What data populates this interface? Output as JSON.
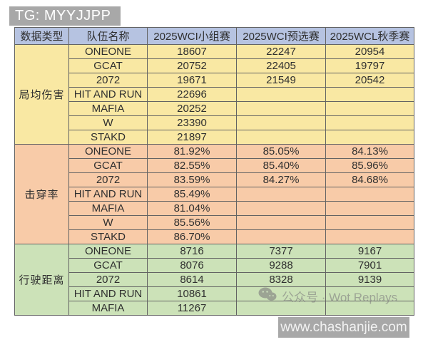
{
  "badges": {
    "tg": "TG: MYYJJPP",
    "website": "www.chashanjie.com"
  },
  "watermark": {
    "icon": "wechat-icon",
    "text": "公众号 · Wot Replays"
  },
  "colors": {
    "header_bg": "#b6c3e1",
    "yellow": "#f9e8a3",
    "salmon": "#f8cba8",
    "green": "#cce2b8",
    "border": "#636363",
    "text": "#2f2f2f",
    "badge_bg": "#a8a8a8"
  },
  "chart_data": {
    "type": "table",
    "columns": [
      "数据类型",
      "队伍名称",
      "2025WCI小组赛",
      "2025WCI预选赛",
      "2025WCL秋季赛"
    ],
    "sections": [
      {
        "label": "局均伤害",
        "color_key": "yellow",
        "rows": [
          {
            "team": "ONEONE",
            "values": [
              "18607",
              "22247",
              "20954"
            ]
          },
          {
            "team": "GCAT",
            "values": [
              "20752",
              "22405",
              "19797"
            ]
          },
          {
            "team": "2072",
            "values": [
              "19671",
              "21549",
              "20542"
            ]
          },
          {
            "team": "HIT AND RUN",
            "values": [
              "22696",
              "",
              ""
            ]
          },
          {
            "team": "MAFIA",
            "values": [
              "20252",
              "",
              ""
            ]
          },
          {
            "team": "W",
            "values": [
              "23390",
              "",
              ""
            ]
          },
          {
            "team": "STAKD",
            "values": [
              "21897",
              "",
              ""
            ]
          }
        ]
      },
      {
        "label": "击穿率",
        "color_key": "salmon",
        "rows": [
          {
            "team": "ONEONE",
            "values": [
              "81.92%",
              "85.05%",
              "84.13%"
            ]
          },
          {
            "team": "GCAT",
            "values": [
              "82.55%",
              "85.40%",
              "85.96%"
            ]
          },
          {
            "team": "2072",
            "values": [
              "83.59%",
              "84.27%",
              "84.68%"
            ]
          },
          {
            "team": "HIT AND RUN",
            "values": [
              "85.49%",
              "",
              ""
            ]
          },
          {
            "team": "MAFIA",
            "values": [
              "81.04%",
              "",
              ""
            ]
          },
          {
            "team": "W",
            "values": [
              "85.56%",
              "",
              ""
            ]
          },
          {
            "team": "STAKD",
            "values": [
              "86.70%",
              "",
              ""
            ]
          }
        ]
      },
      {
        "label": "行驶距离",
        "color_key": "green",
        "rows": [
          {
            "team": "ONEONE",
            "values": [
              "8716",
              "7377",
              "9167"
            ]
          },
          {
            "team": "GCAT",
            "values": [
              "8076",
              "9288",
              "7901"
            ]
          },
          {
            "team": "2072",
            "values": [
              "8614",
              "8328",
              "9139"
            ]
          },
          {
            "team": "HIT AND RUN",
            "values": [
              "10861",
              "",
              ""
            ]
          },
          {
            "team": "MAFIA",
            "values": [
              "11267",
              "",
              ""
            ]
          }
        ]
      }
    ]
  }
}
